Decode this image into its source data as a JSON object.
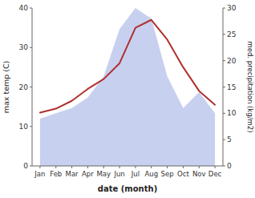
{
  "chart_data": {
    "type": "line",
    "xlabel": "date (month)",
    "ylabel": "max temp (C)",
    "y2label": "med. precipitation (kg/m2)",
    "categories": [
      "Jan",
      "Feb",
      "Mar",
      "Apr",
      "May",
      "Jun",
      "Jul",
      "Aug",
      "Sep",
      "Oct",
      "Nov",
      "Dec"
    ],
    "series": [
      {
        "type": "area",
        "axis": "y2",
        "color": "#c8d0f0",
        "values": [
          9.0,
          10.0,
          11.0,
          13.0,
          17.0,
          26.0,
          30.0,
          28.0,
          17.0,
          11.0,
          14.0,
          10.0
        ]
      },
      {
        "type": "line",
        "color": "#b03030",
        "values": [
          13.5,
          14.5,
          16.5,
          19.5,
          22.0,
          26.0,
          35.0,
          37.0,
          32.0,
          25.0,
          19.0,
          15.5
        ]
      }
    ],
    "ylim": [
      0,
      40
    ],
    "yticks": [
      0,
      10,
      20,
      30,
      40
    ],
    "y2lim": [
      0,
      30
    ],
    "y2ticks": [
      0,
      5,
      10,
      15,
      20,
      25,
      30
    ],
    "grid": false
  }
}
